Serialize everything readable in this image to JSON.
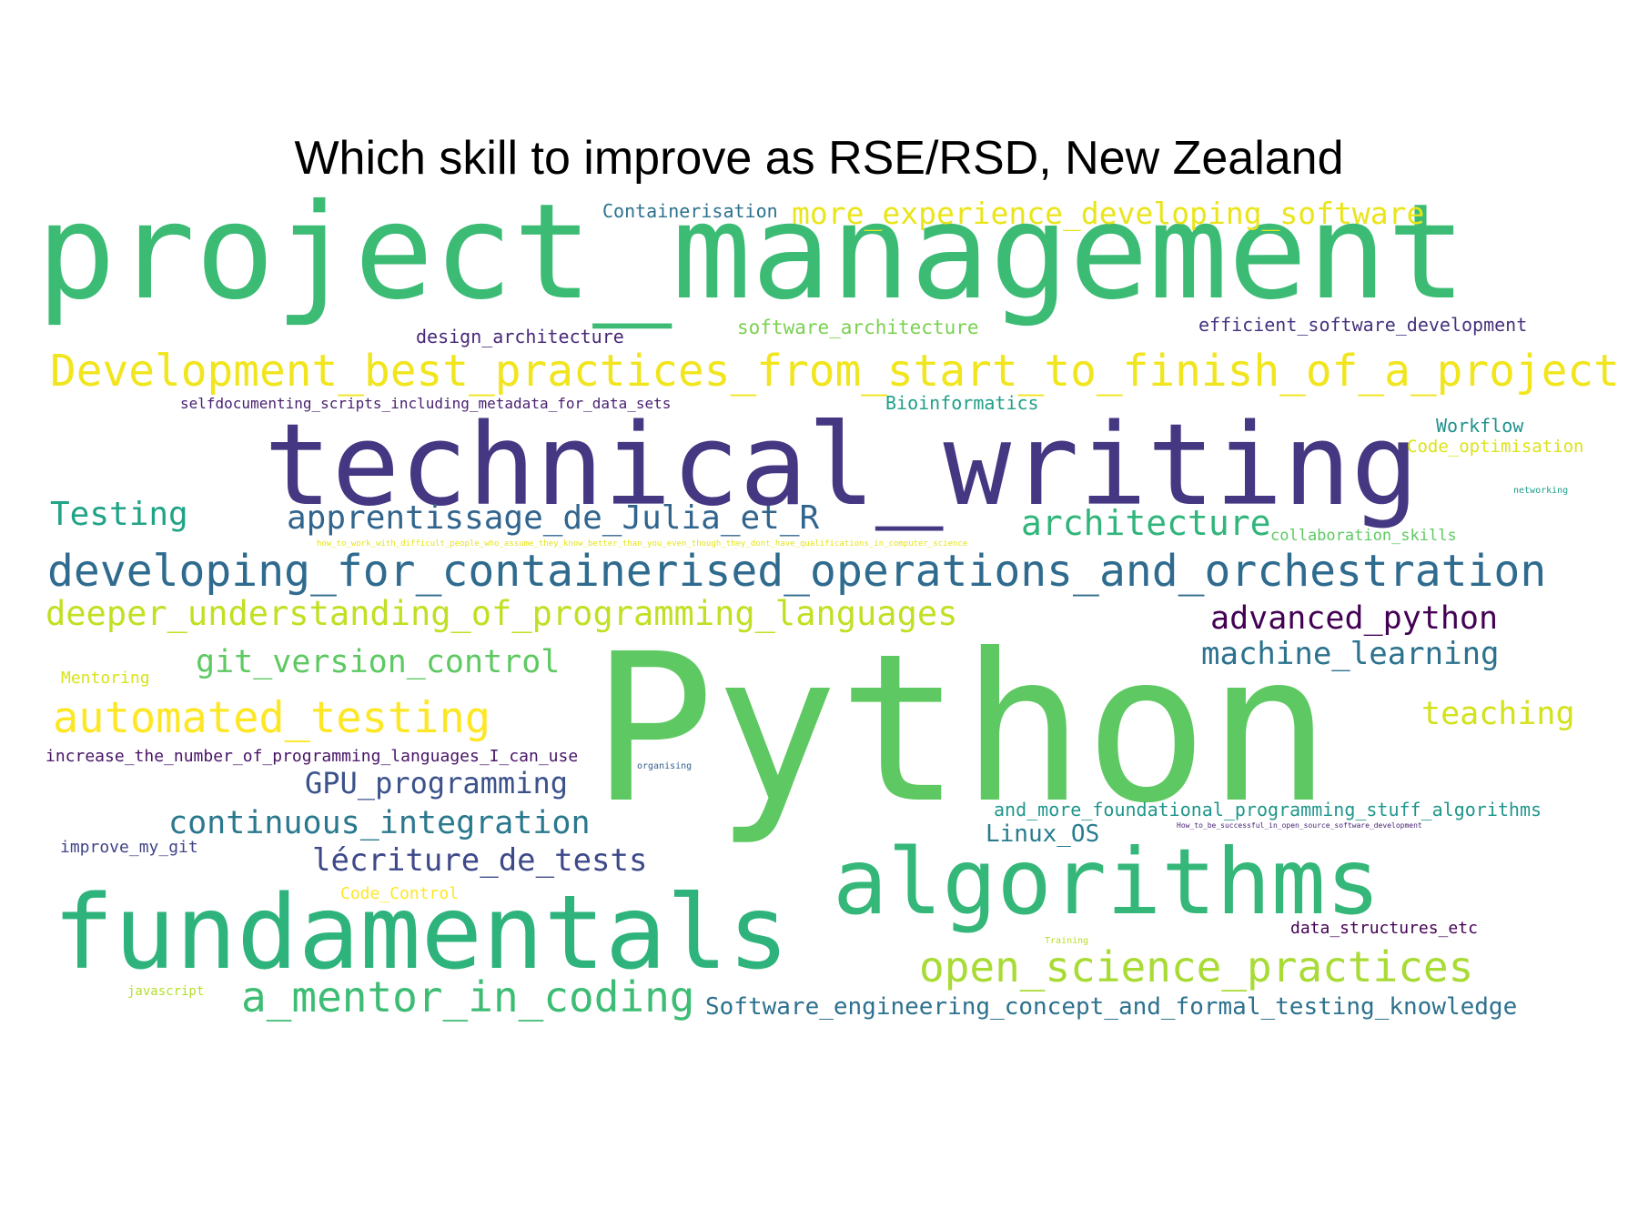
{
  "title": "Which skill to improve as RSE/RSD, New Zealand",
  "words": [
    {
      "text": "project_management",
      "color": "#3cbb75"
    },
    {
      "text": "Python",
      "color": "#5ec962"
    },
    {
      "text": "technical_writing",
      "color": "#453781"
    },
    {
      "text": "fundamentals",
      "color": "#2eb37c"
    },
    {
      "text": "algorithms",
      "color": "#35b779"
    },
    {
      "text": "Development_best_practices_from_start_to_finish_of_a_project",
      "color": "#f1e51d"
    },
    {
      "text": "developing_for_containerised_operations_and_orchestration",
      "color": "#2f6b8e"
    },
    {
      "text": "open_science_practices",
      "color": "#a8db34"
    },
    {
      "text": "deeper_understanding_of_programming_languages",
      "color": "#c2df23"
    },
    {
      "text": "automated_testing",
      "color": "#fde725"
    },
    {
      "text": "a_mentor_in_coding",
      "color": "#3dbc74"
    },
    {
      "text": "apprentissage_de_Julia_et_R",
      "color": "#32658e"
    },
    {
      "text": "more_experience_developing_software",
      "color": "#eae51a"
    },
    {
      "text": "architecture",
      "color": "#31b57b"
    },
    {
      "text": "git_version_control",
      "color": "#5ec962"
    },
    {
      "text": "advanced_python",
      "color": "#440154"
    },
    {
      "text": "machine_learning",
      "color": "#2c728e"
    },
    {
      "text": "teaching",
      "color": "#d2e21b"
    },
    {
      "text": "continuous_integration",
      "color": "#2a788e"
    },
    {
      "text": "lécriture_de_tests",
      "color": "#3e4989"
    },
    {
      "text": "GPU_programming",
      "color": "#3b528b"
    },
    {
      "text": "Testing",
      "color": "#20a386"
    },
    {
      "text": "Software_engineering_concept_and_formal_testing_knowledge",
      "color": "#2d718e"
    },
    {
      "text": "Linux_OS",
      "color": "#287c8e"
    },
    {
      "text": "and_more_foundational_programming_stuff_algorithms",
      "color": "#1f968b"
    },
    {
      "text": "efficient_software_development",
      "color": "#46327e"
    },
    {
      "text": "software_architecture",
      "color": "#7ad151"
    },
    {
      "text": "design_architecture",
      "color": "#482878"
    },
    {
      "text": "Containerisation",
      "color": "#2c728e"
    },
    {
      "text": "Bioinformatics",
      "color": "#1fa088"
    },
    {
      "text": "Workflow",
      "color": "#21918c"
    },
    {
      "text": "Code_optimisation",
      "color": "#dde318"
    },
    {
      "text": "selfdocumenting_scripts_including_metadata_for_data_sets",
      "color": "#481f70"
    },
    {
      "text": "increase_the_number_of_programming_languages_I_can_use",
      "color": "#481467"
    },
    {
      "text": "collaboration_skills",
      "color": "#5ec962"
    },
    {
      "text": "data_structures_etc",
      "color": "#440154"
    },
    {
      "text": "improve_my_git",
      "color": "#414487"
    },
    {
      "text": "Code_Control",
      "color": "#fde725"
    },
    {
      "text": "Mentoring",
      "color": "#d8e219"
    },
    {
      "text": "javascript",
      "color": "#b5de2b"
    },
    {
      "text": "networking",
      "color": "#1f9e89"
    },
    {
      "text": "organising",
      "color": "#355f8d"
    },
    {
      "text": "Training",
      "color": "#b5de2b"
    },
    {
      "text": "how_to_work_with_difficult_people_who_assume_they_know_better_than_you_even_though_they_dont_have_qualifications_in_computer_science",
      "color": "#e5e419"
    },
    {
      "text": "How_to_be_successful_in_open_source_software_development",
      "color": "#482475"
    }
  ]
}
